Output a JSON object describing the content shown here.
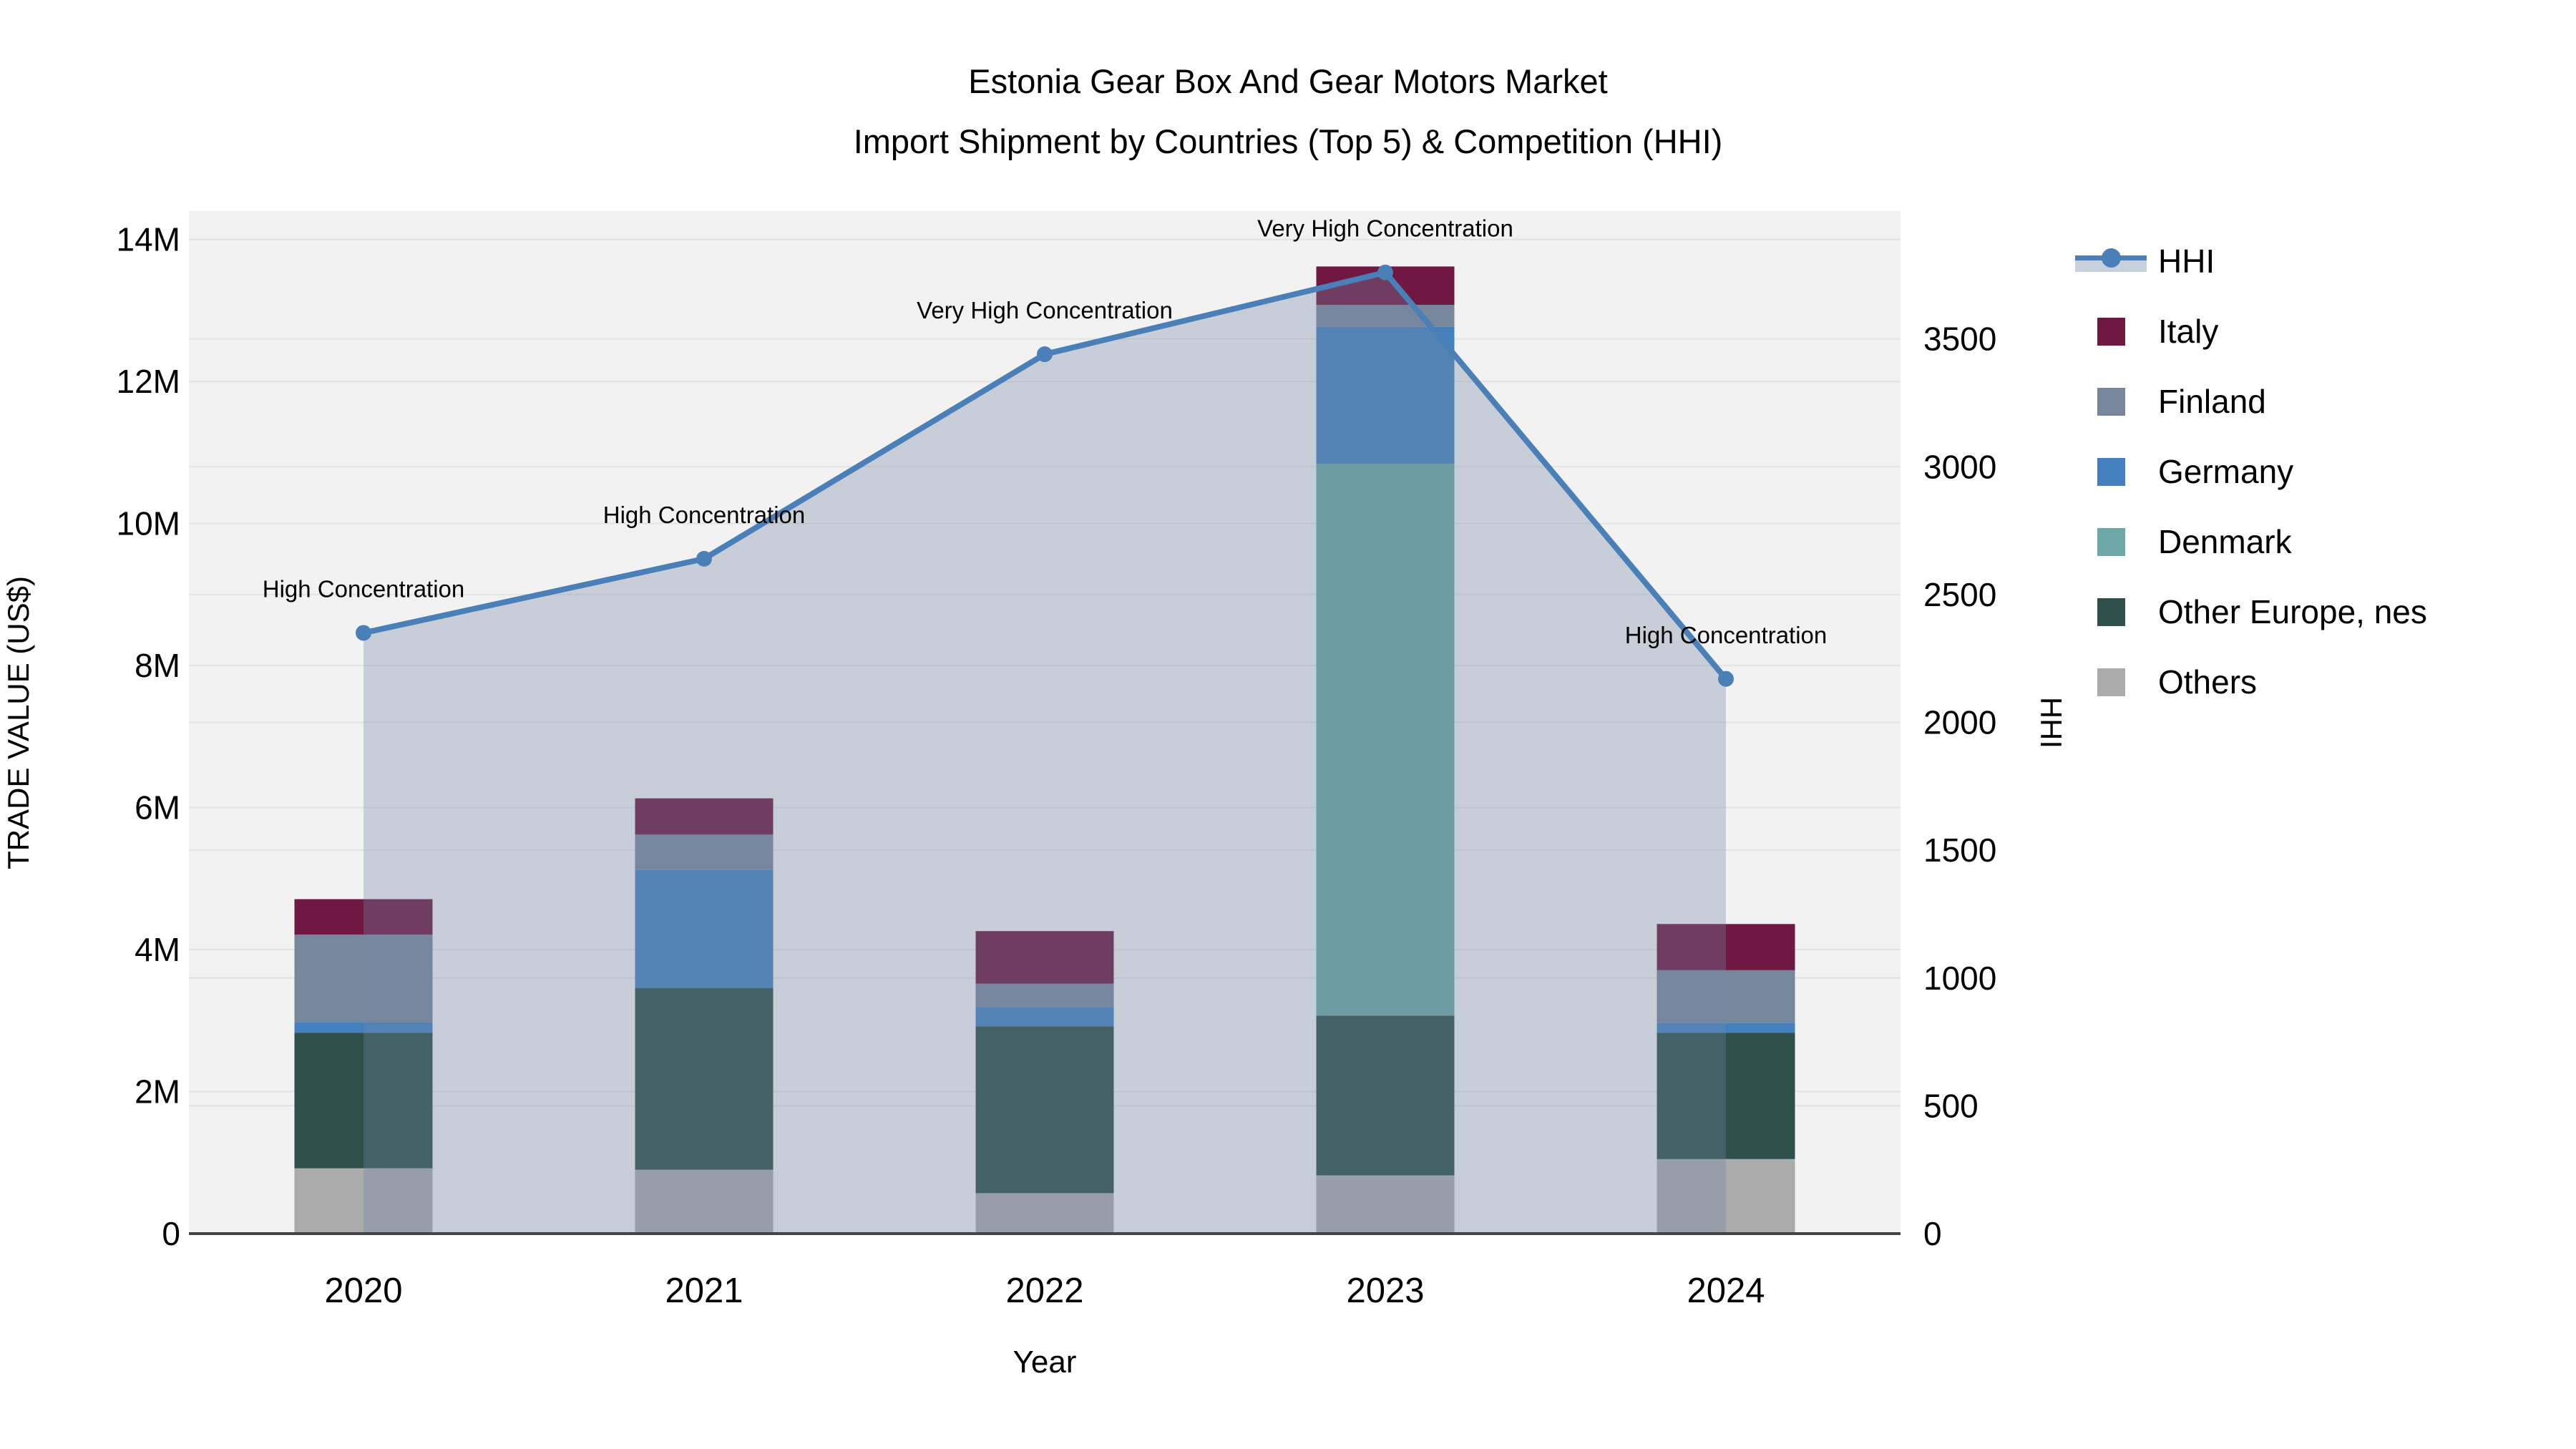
{
  "title": {
    "line1": "Estonia Gear Box And Gear Motors Market",
    "line2": "Import Shipment by Countries (Top 5) & Competition (HHI)"
  },
  "chart_data": {
    "type": "combo-stacked-bar-line-area",
    "x_title": "Year",
    "y_left_title": "TRADE VALUE (US$)",
    "y_right_title": "HHI",
    "categories": [
      "2020",
      "2021",
      "2022",
      "2023",
      "2024"
    ],
    "bar_unit": "M US$ (trade value, millions)",
    "bar_series": [
      {
        "name": "Others",
        "color": "#ABABAB",
        "values": [
          0.92,
          0.9,
          0.57,
          0.82,
          1.05
        ]
      },
      {
        "name": "Other Europe, nes",
        "color": "#2F4F4B",
        "values": [
          1.91,
          2.56,
          2.35,
          2.25,
          1.78
        ]
      },
      {
        "name": "Denmark",
        "color": "#6CA8A6",
        "values": [
          0,
          0,
          0,
          7.77,
          0
        ]
      },
      {
        "name": "Germany",
        "color": "#4380BD",
        "values": [
          0.15,
          1.66,
          0.27,
          1.93,
          0.14
        ]
      },
      {
        "name": "Finland",
        "color": "#77879B",
        "values": [
          1.23,
          0.5,
          0.33,
          0.31,
          0.74
        ]
      },
      {
        "name": "Italy",
        "color": "#6E1842",
        "values": [
          0.5,
          0.51,
          0.74,
          0.54,
          0.65
        ]
      }
    ],
    "bar_totals": [
      4.71,
      6.13,
      4.26,
      13.62,
      4.36
    ],
    "line_series": {
      "name": "HHI",
      "color": "#4A7FB8",
      "area_fill": "rgba(115,134,165,0.33)",
      "values": [
        2350,
        2640,
        3440,
        3760,
        2170
      ]
    },
    "annotations": [
      {
        "category": "2020",
        "text": "High Concentration"
      },
      {
        "category": "2021",
        "text": "High Concentration"
      },
      {
        "category": "2022",
        "text": "Very High Concentration"
      },
      {
        "category": "2023",
        "text": "Very High Concentration"
      },
      {
        "category": "2024",
        "text": "High Concentration"
      }
    ],
    "left_axis": {
      "max": 14.4,
      "ticks": [
        {
          "v": 0,
          "label": "0"
        },
        {
          "v": 2,
          "label": "2M"
        },
        {
          "v": 4,
          "label": "4M"
        },
        {
          "v": 6,
          "label": "6M"
        },
        {
          "v": 8,
          "label": "8M"
        },
        {
          "v": 10,
          "label": "10M"
        },
        {
          "v": 12,
          "label": "12M"
        },
        {
          "v": 14,
          "label": "14M"
        }
      ]
    },
    "right_axis": {
      "max": 4000,
      "ticks": [
        {
          "v": 0,
          "label": "0"
        },
        {
          "v": 500,
          "label": "500"
        },
        {
          "v": 1000,
          "label": "1000"
        },
        {
          "v": 1500,
          "label": "1500"
        },
        {
          "v": 2000,
          "label": "2000"
        },
        {
          "v": 2500,
          "label": "2500"
        },
        {
          "v": 3000,
          "label": "3000"
        },
        {
          "v": 3500,
          "label": "3500"
        }
      ]
    },
    "legend_order": [
      "HHI",
      "Italy",
      "Finland",
      "Germany",
      "Denmark",
      "Other Europe, nes",
      "Others"
    ],
    "layout": {
      "plot_bg": "#f2f2f2",
      "grid_color": "#e3e3e3",
      "axis_line_color": "#444444",
      "legend_position": "right"
    }
  }
}
